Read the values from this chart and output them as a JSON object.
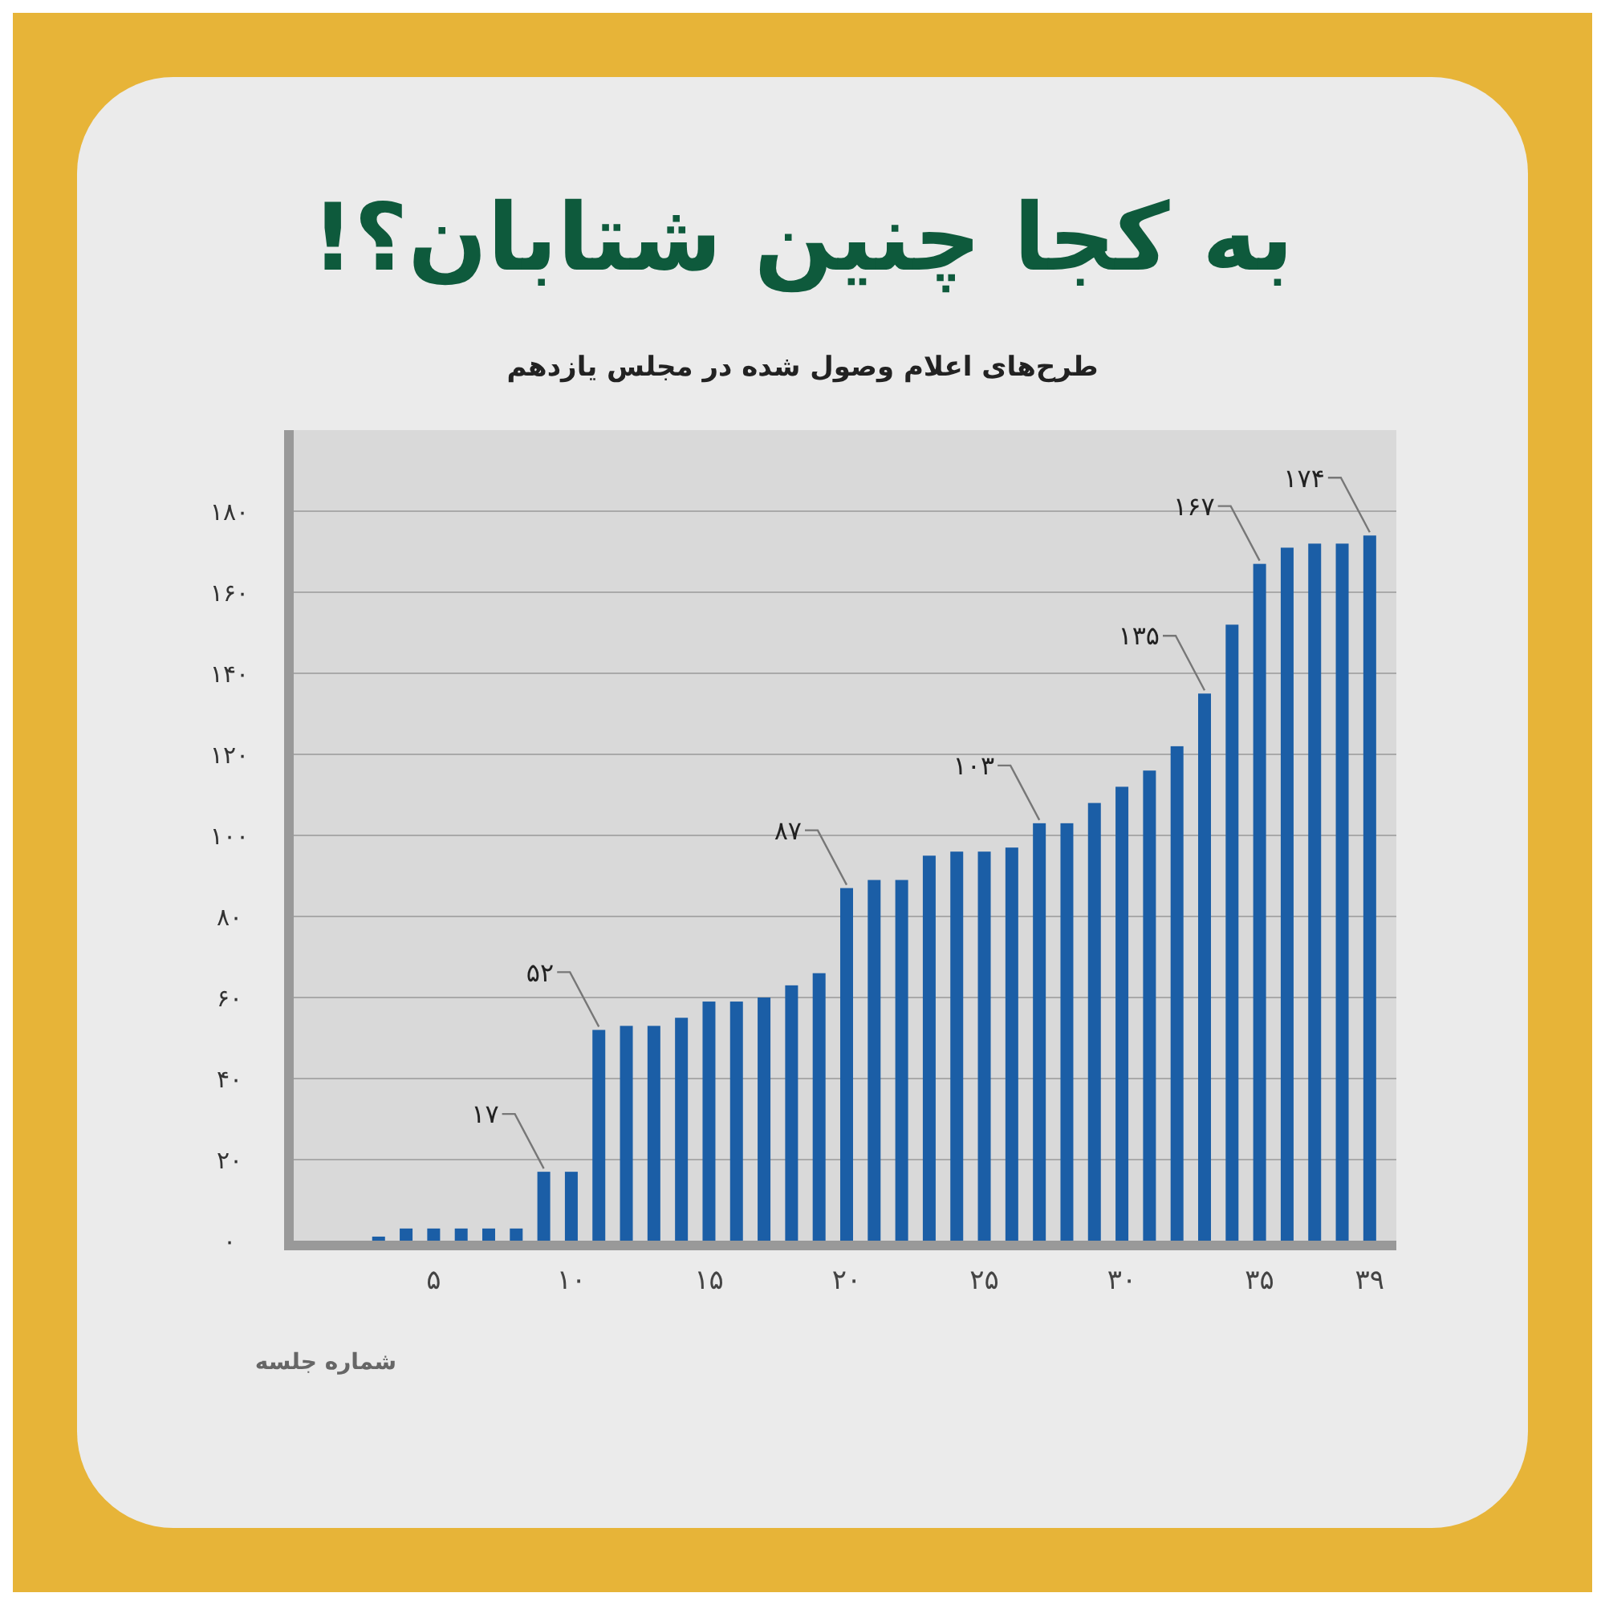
{
  "chart_data": {
    "type": "bar",
    "title": "به کجا چنین شتابان؟!",
    "subtitle": "طرح‌های اعلام وصول شده در مجلس یازدهم",
    "xlabel": "شماره جلسه",
    "categories": [
      null,
      null,
      null,
      null,
      "۵",
      null,
      null,
      null,
      null,
      "۱۰",
      null,
      null,
      null,
      null,
      "۱۵",
      null,
      null,
      null,
      null,
      "۲۰",
      null,
      null,
      null,
      null,
      "۲۵",
      null,
      null,
      null,
      null,
      "۳۰",
      null,
      null,
      null,
      null,
      "۳۵",
      null,
      null,
      null,
      "۳۹"
    ],
    "values": [
      0,
      0,
      1,
      3,
      3,
      3,
      3,
      3,
      17,
      17,
      52,
      53,
      53,
      55,
      59,
      59,
      60,
      63,
      66,
      87,
      89,
      89,
      95,
      96,
      96,
      97,
      103,
      103,
      108,
      112,
      116,
      122,
      135,
      152,
      167,
      171,
      172,
      172,
      174
    ],
    "value_labels": [
      null,
      null,
      null,
      null,
      null,
      null,
      null,
      null,
      "۱۷",
      null,
      "۵۲",
      null,
      null,
      null,
      null,
      null,
      null,
      null,
      null,
      "۸۷",
      null,
      null,
      null,
      null,
      null,
      null,
      "۱۰۳",
      null,
      null,
      null,
      null,
      null,
      "۱۳۵",
      null,
      "۱۶۷",
      null,
      null,
      null,
      "۱۷۴"
    ],
    "color": "#1b5ea6",
    "ylim": [
      0,
      200
    ],
    "yticks": [
      {
        "value": 0,
        "label": "۰"
      },
      {
        "value": 20,
        "label": "۲۰"
      },
      {
        "value": 40,
        "label": "۴۰"
      },
      {
        "value": 60,
        "label": "۶۰"
      },
      {
        "value": 80,
        "label": "۸۰"
      },
      {
        "value": 100,
        "label": "۱۰۰"
      },
      {
        "value": 120,
        "label": "۱۲۰"
      },
      {
        "value": 140,
        "label": "۱۴۰"
      },
      {
        "value": 160,
        "label": "۱۶۰"
      },
      {
        "value": 180,
        "label": "۱۸۰"
      }
    ],
    "grid": "y"
  }
}
